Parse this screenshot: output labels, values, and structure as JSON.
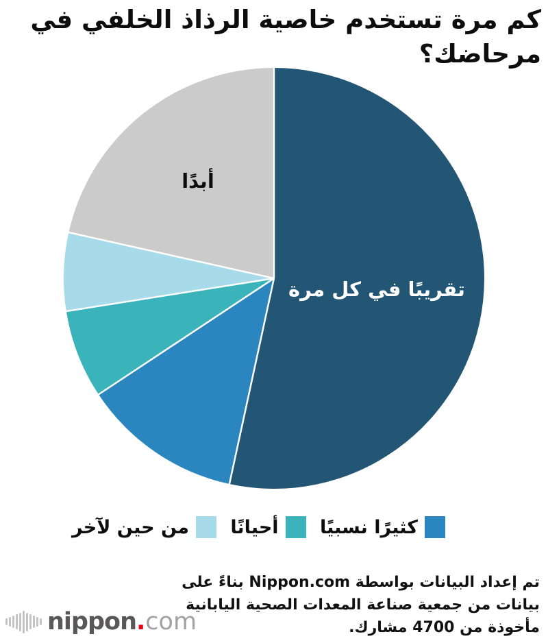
{
  "title": "كم مرة تستخدم خاصية الرذاذ الخلفي في مرحاضك؟",
  "chart_data": {
    "type": "pie",
    "title": "كم مرة تستخدم خاصية الرذاذ الخلفي في مرحاضك؟",
    "start_angle_deg": 0,
    "direction": "clockwise",
    "legend_position": "bottom",
    "slices": [
      {
        "label": "تقريبًا في كل مرة",
        "value": 53.4,
        "color": "#235674",
        "label_placement": "inside",
        "label_color": "#ffffff"
      },
      {
        "label": "كثيرًا نسبيًا",
        "value": 12.3,
        "color": "#2b86bf",
        "label_placement": "legend"
      },
      {
        "label": "أحيانًا",
        "value": 6.8,
        "color": "#3ab3bb",
        "label_placement": "legend"
      },
      {
        "label": "من حين لآخر",
        "value": 6.0,
        "color": "#a8dbe9",
        "label_placement": "legend"
      },
      {
        "label": "أبدًا",
        "value": 21.5,
        "color": "#cbcbcb",
        "label_placement": "inside",
        "label_color": "#000000"
      }
    ],
    "divider_color": "#ffffff"
  },
  "footer": {
    "lines": [
      "تم إعداد البيانات بواسطة Nippon.com بناءً على",
      "بيانات من جمعية صناعة المعدات الصحية اليابانية",
      "مأخوذة من 4700 مشارك."
    ]
  },
  "logo": {
    "name": "nippon",
    "dot": ".",
    "tld": "com",
    "accent_color": "#e60012"
  }
}
